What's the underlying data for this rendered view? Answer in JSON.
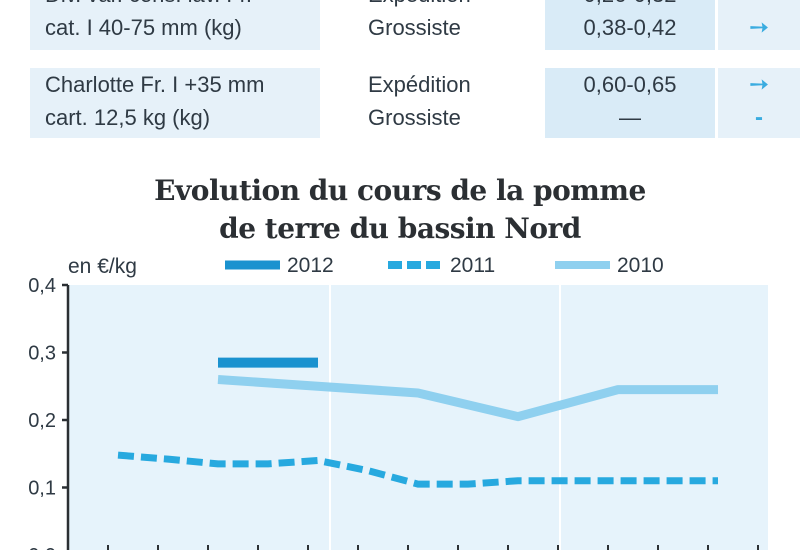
{
  "table": {
    "rows": [
      {
        "product": [
          "Div. var. cons. lav. Fr.",
          "cat. I 40-75 mm (kg)"
        ],
        "stage": [
          "Expédition",
          "Grossiste"
        ],
        "price": [
          "0,26-0,32",
          "0,38-0,42"
        ],
        "trend": [
          "➙",
          "➙"
        ]
      },
      {
        "product": [
          "Charlotte Fr. I +35 mm",
          "cart. 12,5 kg (kg)"
        ],
        "stage": [
          "Expédition",
          "Grossiste"
        ],
        "price": [
          "0,60-0,65",
          "—"
        ],
        "trend": [
          "➙",
          "-"
        ]
      }
    ]
  },
  "colors": {
    "s2012": "#1a92cf",
    "s2011": "#27a9df",
    "s2010": "#8fd0ef",
    "plot_bg": "#e6f3fb"
  },
  "chart_data": {
    "type": "line",
    "title": "Evolution du cours de la pomme de terre du bassin Nord",
    "title_lines": [
      "Evolution du cours de la pomme",
      "de terre du bassin Nord"
    ],
    "ylabel": "en €/kg",
    "ylim": [
      0,
      0.4
    ],
    "yticks": [
      0.0,
      0.1,
      0.2,
      0.3,
      0.4
    ],
    "ytick_labels": [
      "0,0",
      "0,1",
      "0,2",
      "0,3",
      "0,4"
    ],
    "x": [
      1,
      2,
      3,
      4,
      5,
      6,
      7,
      8,
      9,
      10,
      11,
      12,
      13,
      14
    ],
    "xlim": [
      0,
      14
    ],
    "legend_position": "top",
    "series": [
      {
        "name": "2012",
        "style": "solid-thick",
        "x": [
          3,
          5
        ],
        "values": [
          0.285,
          0.285
        ]
      },
      {
        "name": "2011",
        "style": "dashed",
        "x": [
          1,
          2,
          3,
          4,
          5,
          6,
          7,
          8,
          9,
          10,
          11,
          12,
          13
        ],
        "values": [
          0.148,
          0.142,
          0.135,
          0.135,
          0.14,
          0.125,
          0.105,
          0.105,
          0.11,
          0.11,
          0.11,
          0.11,
          0.11
        ]
      },
      {
        "name": "2010",
        "style": "solid-light",
        "x": [
          3,
          7,
          9,
          11,
          13
        ],
        "values": [
          0.26,
          0.24,
          0.205,
          0.245,
          0.245
        ]
      }
    ]
  }
}
